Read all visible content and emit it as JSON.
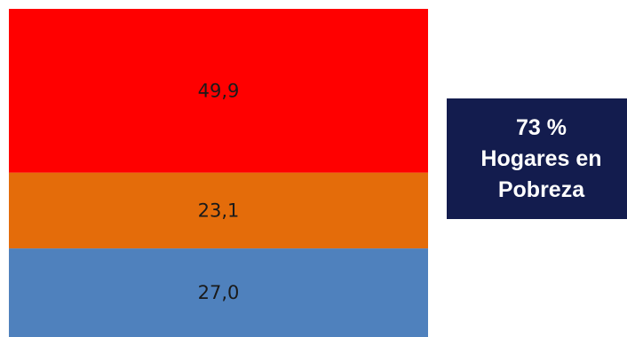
{
  "chart_data": {
    "type": "bar",
    "stacked": true,
    "categories": [
      ""
    ],
    "series": [
      {
        "values": [
          27.0
        ],
        "label": "27,0",
        "color": "#4f81bd"
      },
      {
        "values": [
          23.1
        ],
        "label": "23,1",
        "color": "#e46c0a"
      },
      {
        "values": [
          49.9
        ],
        "label": "49,9",
        "color": "#ff0000"
      }
    ],
    "title": "",
    "xlabel": "",
    "ylabel": "",
    "ylim": [
      0,
      100
    ]
  },
  "callout": {
    "line1": "73 %",
    "line2": "Hogares en",
    "line3": "Pobreza",
    "background": "#131c4e"
  }
}
